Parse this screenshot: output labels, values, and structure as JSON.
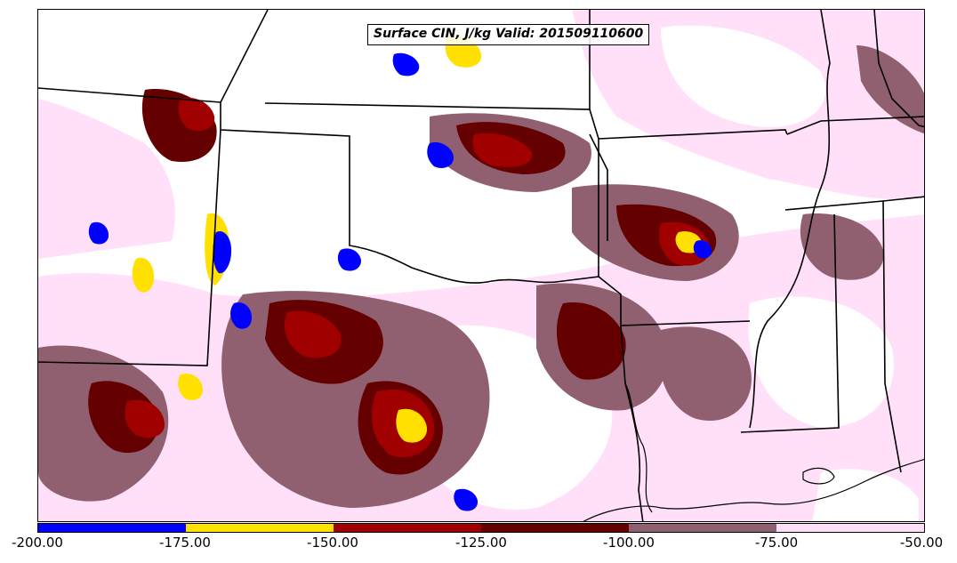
{
  "title": "Surface CIN, J/kg Valid: 201509110600",
  "colorbar": {
    "ticks": [
      "-200.00",
      "-175.00",
      "-150.00",
      "-125.00",
      "-100.00",
      "-75.00",
      "-50.00"
    ],
    "colors": [
      "#0000ff",
      "#ffe000",
      "#a00000",
      "#640000",
      "#906070",
      "#ffe0f8"
    ]
  },
  "map": {
    "background": "#ffffff",
    "boundary_color": "#000000"
  }
}
